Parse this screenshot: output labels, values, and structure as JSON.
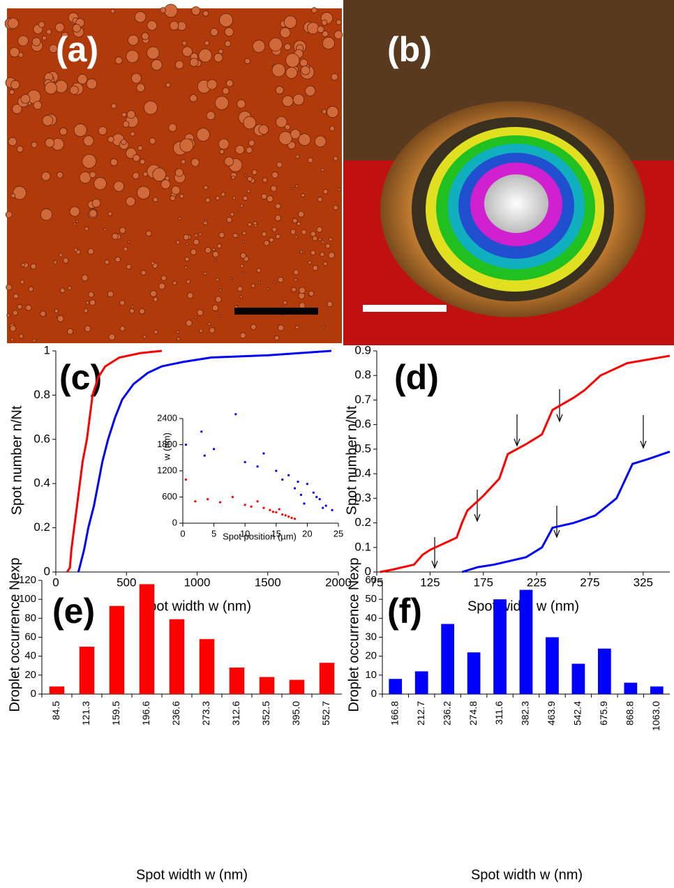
{
  "images": [
    {
      "label": "(a)"
    },
    {
      "label": "(b)"
    }
  ],
  "chart_data": [
    {
      "type": "line",
      "label": "(c)",
      "xlabel": "Spot width w (nm)",
      "ylabel": "Spot number n/Nt",
      "xlim": [
        0,
        2000
      ],
      "xticks": [
        0,
        500,
        1000,
        1500,
        2000
      ],
      "ylim": [
        0,
        1
      ],
      "yticks": [
        0,
        0.2,
        0.4,
        0.6,
        0.8,
        1
      ],
      "series": [
        {
          "color": "#ff0000",
          "x": [
            80,
            100,
            110,
            130,
            150,
            170,
            190,
            220,
            240,
            260,
            300,
            350,
            450,
            600,
            750
          ],
          "values": [
            0,
            0.02,
            0.1,
            0.2,
            0.3,
            0.4,
            0.5,
            0.6,
            0.7,
            0.8,
            0.88,
            0.93,
            0.97,
            0.99,
            1
          ]
        },
        {
          "color": "#0000ff",
          "x": [
            160,
            180,
            200,
            230,
            270,
            300,
            330,
            370,
            420,
            470,
            550,
            650,
            750,
            900,
            1100,
            1500,
            1950
          ],
          "values": [
            0,
            0.05,
            0.1,
            0.2,
            0.3,
            0.4,
            0.5,
            0.6,
            0.7,
            0.78,
            0.85,
            0.9,
            0.93,
            0.95,
            0.97,
            0.98,
            1
          ]
        }
      ]
    },
    {
      "type": "scatter",
      "xlabel": "Spot position (µm)",
      "ylabel": "w (nm)",
      "xlim": [
        0,
        25
      ],
      "xticks": [
        0,
        5,
        10,
        15,
        20,
        25
      ],
      "ylim": [
        0,
        2400
      ],
      "yticks": [
        0,
        600,
        1200,
        1800,
        2400
      ],
      "series": [
        {
          "color": "#ff0000",
          "x": [
            0.5,
            2,
            4,
            6,
            8,
            10,
            11,
            12,
            13,
            14,
            15,
            16,
            16.5,
            17,
            17.5,
            18,
            15.5,
            14.5
          ],
          "values": [
            1000,
            500,
            550,
            480,
            600,
            420,
            380,
            500,
            350,
            300,
            250,
            200,
            180,
            150,
            120,
            100,
            320,
            260
          ]
        },
        {
          "color": "#0000ff",
          "x": [
            0.5,
            3,
            3.5,
            5,
            8.5,
            10,
            12,
            13,
            15,
            16,
            17,
            18,
            19,
            20,
            21,
            22,
            23,
            24,
            19.5,
            21.5,
            22.5,
            18.5
          ],
          "values": [
            1800,
            2100,
            1550,
            1700,
            2500,
            1400,
            1300,
            1600,
            1200,
            1000,
            1100,
            800,
            650,
            900,
            700,
            550,
            400,
            300,
            450,
            600,
            350,
            950
          ]
        }
      ]
    },
    {
      "type": "line",
      "label": "(d)",
      "xlabel": "Spot width w (nm)",
      "ylabel": "Spot number n/Nt",
      "xlim": [
        75,
        350
      ],
      "xticks": [
        75,
        125,
        175,
        225,
        275,
        325
      ],
      "ylim": [
        0,
        0.9
      ],
      "yticks": [
        0,
        0.1,
        0.2,
        0.3,
        0.4,
        0.5,
        0.6,
        0.7,
        0.8,
        0.9
      ],
      "series": [
        {
          "color": "#ff0000",
          "x": [
            78,
            90,
            110,
            118,
            125,
            150,
            155,
            160,
            175,
            190,
            198,
            215,
            230,
            240,
            260,
            270,
            285,
            310,
            350
          ],
          "values": [
            0,
            0.01,
            0.03,
            0.07,
            0.09,
            0.14,
            0.2,
            0.25,
            0.31,
            0.38,
            0.48,
            0.52,
            0.56,
            0.66,
            0.71,
            0.74,
            0.8,
            0.85,
            0.88
          ]
        },
        {
          "color": "#0000ff",
          "x": [
            155,
            170,
            185,
            215,
            230,
            240,
            260,
            280,
            300,
            315,
            330,
            350
          ],
          "values": [
            0,
            0.02,
            0.03,
            0.06,
            0.1,
            0.18,
            0.2,
            0.23,
            0.3,
            0.44,
            0.46,
            0.49
          ]
        }
      ]
    },
    {
      "type": "bar",
      "label": "(e)",
      "xlabel": "Spot width w (nm)",
      "ylabel": "Droplet occurrence Nexp",
      "color": "#ff0000",
      "categories": [
        "84.5",
        "121.3",
        "159.5",
        "196.6",
        "236.6",
        "273.3",
        "312.6",
        "352.5",
        "395.0",
        "552.7"
      ],
      "values": [
        8,
        50,
        93,
        116,
        79,
        58,
        28,
        18,
        15,
        33
      ],
      "ylim": [
        0,
        120
      ],
      "yticks": [
        0,
        20,
        40,
        60,
        80,
        100,
        120
      ]
    },
    {
      "type": "bar",
      "label": "(f)",
      "xlabel": "Spot width w (nm)",
      "ylabel": "Droplet occurrence Nexp",
      "color": "#0000ff",
      "categories": [
        "166.8",
        "212.7",
        "236.2",
        "274.8",
        "311.6",
        "382.3",
        "463.9",
        "542.4",
        "675.9",
        "868.8",
        "1063.0"
      ],
      "values": [
        8,
        12,
        37,
        22,
        50,
        55,
        30,
        16,
        24,
        6,
        4
      ],
      "ylim": [
        0,
        60
      ],
      "yticks": [
        0,
        10,
        20,
        30,
        40,
        50,
        60
      ]
    }
  ]
}
